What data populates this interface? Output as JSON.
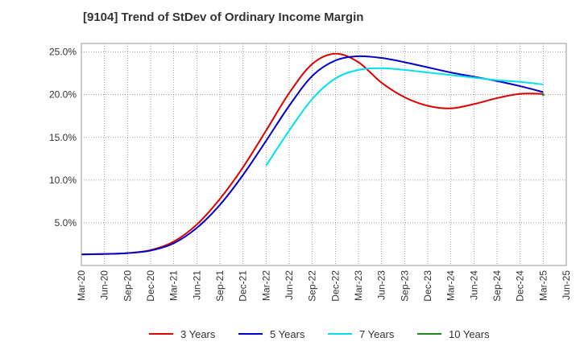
{
  "chart_data": {
    "type": "line",
    "title": "[9104]  Trend of StDev of Ordinary Income Margin",
    "xlabel": "",
    "ylabel": "",
    "ylim": [
      0,
      26.0
    ],
    "y_ticks": [
      5.0,
      10.0,
      15.0,
      20.0,
      25.0
    ],
    "y_tick_labels": [
      "5.0%",
      "10.0%",
      "15.0%",
      "20.0%",
      "25.0%"
    ],
    "x_tick_labels": [
      "Mar-20",
      "Jun-20",
      "Sep-20",
      "Dec-20",
      "Mar-21",
      "Jun-21",
      "Sep-21",
      "Dec-21",
      "Mar-22",
      "Jun-22",
      "Sep-22",
      "Dec-22",
      "Mar-23",
      "Jun-23",
      "Sep-23",
      "Dec-23",
      "Mar-24",
      "Jun-24",
      "Sep-24",
      "Dec-24",
      "Mar-25",
      "Jun-25"
    ],
    "grid": true,
    "legend_position": "bottom",
    "series": [
      {
        "name": "3 Years",
        "color": "#dd0000",
        "x": [
          "Mar-20",
          "Jun-20",
          "Sep-20",
          "Dec-20",
          "Mar-21",
          "Jun-21",
          "Sep-21",
          "Dec-21",
          "Mar-22",
          "Jun-22",
          "Sep-22",
          "Dec-22",
          "Mar-23",
          "Jun-23",
          "Sep-23",
          "Dec-23",
          "Mar-24",
          "Jun-24",
          "Sep-24",
          "Dec-24",
          "Mar-25"
        ],
        "values": [
          1.3,
          1.35,
          1.45,
          1.8,
          2.8,
          4.8,
          7.8,
          11.5,
          15.8,
          20.2,
          23.6,
          24.8,
          23.8,
          21.4,
          19.7,
          18.7,
          18.4,
          18.9,
          19.6,
          20.1,
          20.1
        ]
      },
      {
        "name": "5 Years",
        "color": "#0000cc",
        "x": [
          "Mar-20",
          "Jun-20",
          "Sep-20",
          "Dec-20",
          "Mar-21",
          "Jun-21",
          "Sep-21",
          "Dec-21",
          "Mar-22",
          "Jun-22",
          "Sep-22",
          "Dec-22",
          "Mar-23",
          "Jun-23",
          "Sep-23",
          "Dec-23",
          "Mar-24",
          "Jun-24",
          "Sep-24",
          "Dec-24",
          "Mar-25"
        ],
        "values": [
          1.3,
          1.35,
          1.45,
          1.75,
          2.6,
          4.4,
          7.1,
          10.6,
          14.6,
          18.7,
          22.2,
          24.0,
          24.5,
          24.3,
          23.8,
          23.2,
          22.6,
          22.1,
          21.6,
          21.0,
          20.3
        ]
      },
      {
        "name": "7 Years",
        "color": "#00e0ee",
        "x": [
          "Mar-22",
          "Jun-22",
          "Sep-22",
          "Dec-22",
          "Mar-23",
          "Jun-23",
          "Sep-23",
          "Dec-23",
          "Mar-24",
          "Jun-24",
          "Sep-24",
          "Dec-24",
          "Mar-25"
        ],
        "values": [
          11.7,
          15.8,
          19.5,
          21.9,
          22.9,
          23.1,
          22.9,
          22.6,
          22.3,
          22.0,
          21.7,
          21.5,
          21.2
        ]
      },
      {
        "name": "10 Years",
        "color": "#228822",
        "x": [
          "Mar-25"
        ],
        "values": [
          20.0
        ]
      }
    ]
  }
}
